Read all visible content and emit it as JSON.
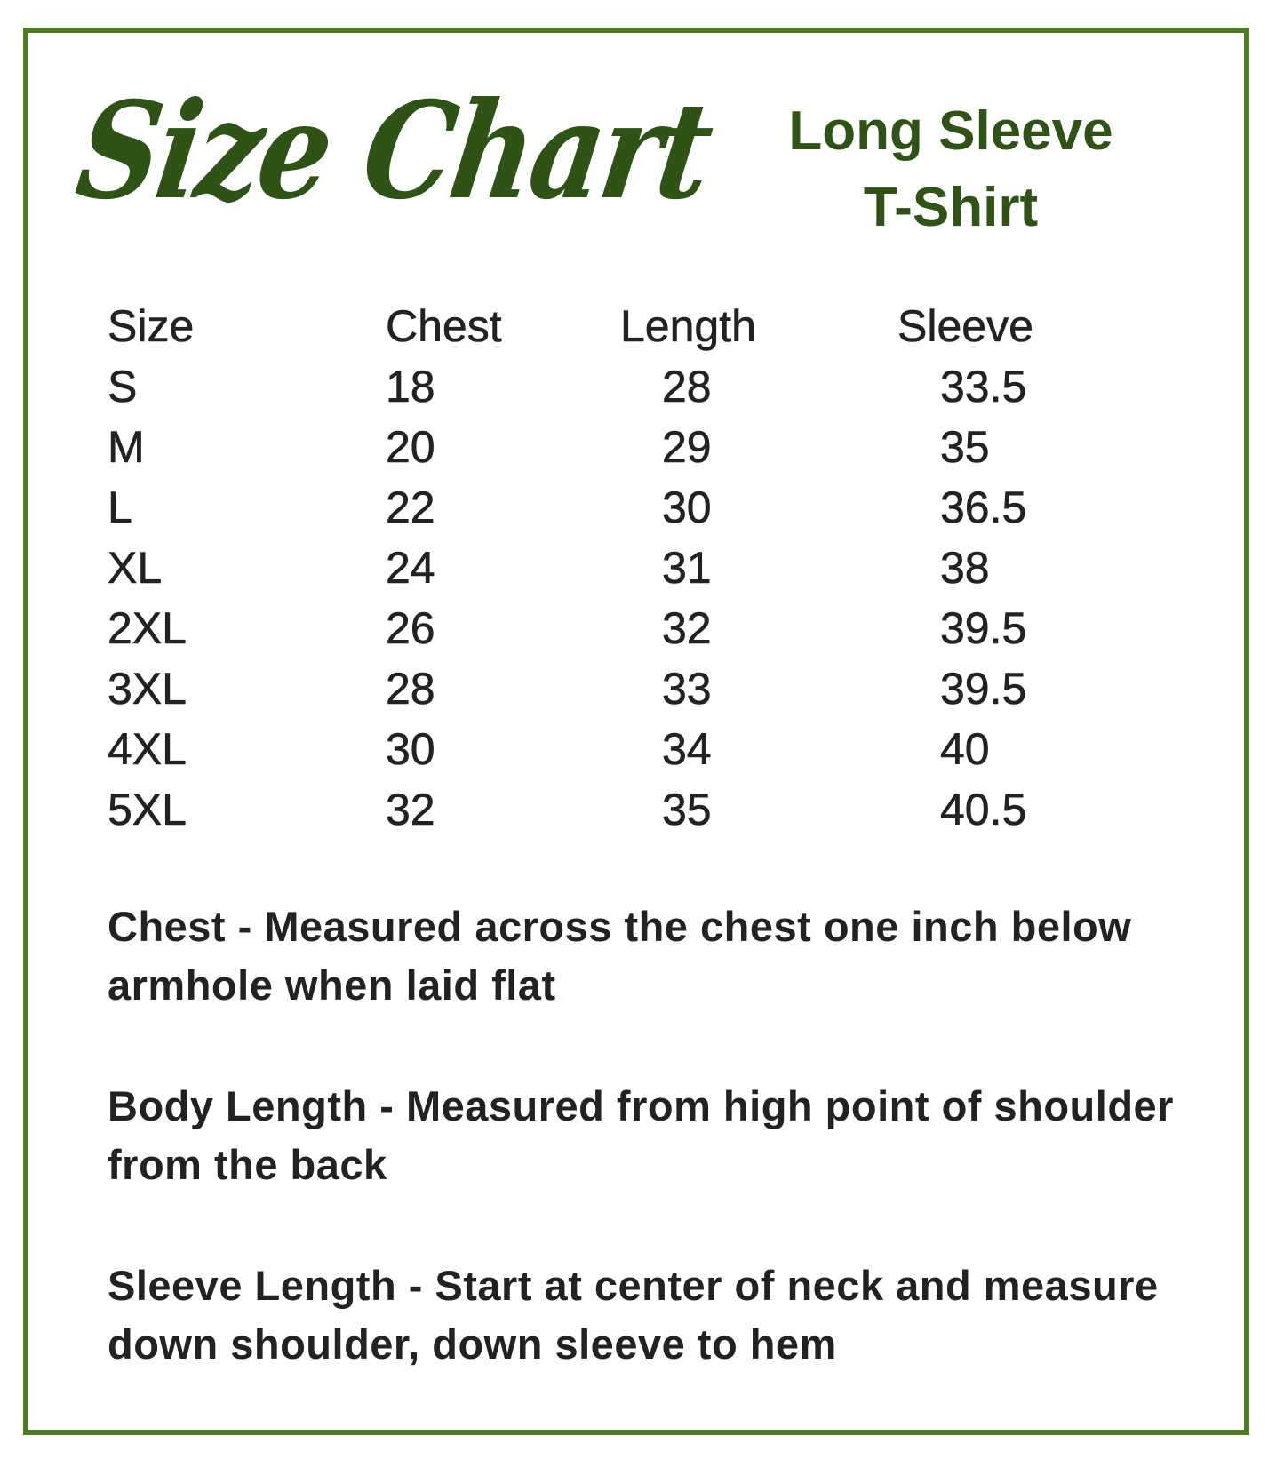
{
  "title": "Size Chart",
  "subtitle": [
    "Long Sleeve",
    "T-Shirt"
  ],
  "colors": {
    "border": "#4e7a22",
    "title": "#2f5216",
    "text": "#222222"
  },
  "table": {
    "headers": [
      "Size",
      "Chest",
      "Length",
      "Sleeve"
    ],
    "rows": [
      [
        "S",
        "18",
        "28",
        "33.5"
      ],
      [
        "M",
        "20",
        "29",
        "35"
      ],
      [
        "L",
        "22",
        "30",
        "36.5"
      ],
      [
        "XL",
        "24",
        "31",
        "38"
      ],
      [
        "2XL",
        "26",
        "32",
        "39.5"
      ],
      [
        "3XL",
        "28",
        "33",
        "39.5"
      ],
      [
        "4XL",
        "30",
        "34",
        "40"
      ],
      [
        "5XL",
        "32",
        "35",
        "40.5"
      ]
    ]
  },
  "notes": [
    "Chest - Measured across the chest one inch below armhole when laid flat",
    "Body Length - Measured from high point of shoulder from the back",
    "Sleeve Length - Start at center of neck and measure down shoulder, down sleeve to hem"
  ]
}
